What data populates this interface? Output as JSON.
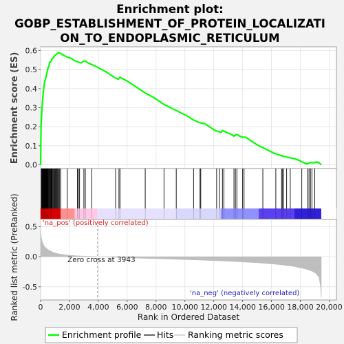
{
  "chart_data": {
    "type": "line",
    "title_lines": [
      "Enrichment plot:",
      "GOBP_ESTABLISHMENT_OF_PROTEIN_LOCALIZATI",
      "ON_TO_ENDOPLASMIC_RETICULUM"
    ],
    "es_panel": {
      "ylabel": "Enrichment score (ES)",
      "ylim": [
        -0.02,
        0.62
      ],
      "yticks": [
        "0.0",
        "0.1",
        "0.2",
        "0.3",
        "0.4",
        "0.5",
        "0.6"
      ],
      "series": [
        {
          "name": "Enrichment profile",
          "color": "#00ff00",
          "x": [
            0,
            30,
            70,
            120,
            170,
            230,
            290,
            340,
            400,
            460,
            520,
            580,
            640,
            700,
            760,
            820,
            880,
            940,
            1000,
            1080,
            1160,
            1250,
            1400,
            1600,
            1850,
            2100,
            2400,
            2600,
            2800,
            3000,
            3100,
            3300,
            3600,
            4000,
            4500,
            5000,
            5200,
            5400,
            5500,
            6000,
            6500,
            7000,
            7300,
            7800,
            8200,
            8600,
            9000,
            9400,
            9800,
            10200,
            10600,
            10900,
            11100,
            11400,
            11800,
            12100,
            12300,
            12500,
            12600,
            12900,
            13200,
            13400,
            13600,
            13800,
            14000,
            14200,
            14600,
            15000,
            15400,
            15800,
            16200,
            16600,
            16800,
            17100,
            17400,
            17700,
            18000,
            18200,
            18400,
            18600,
            18700,
            18900,
            19100,
            19300,
            19450
          ],
          "y": [
            0.0,
            0.2,
            0.26,
            0.32,
            0.37,
            0.41,
            0.44,
            0.45,
            0.47,
            0.49,
            0.51,
            0.52,
            0.54,
            0.54,
            0.55,
            0.56,
            0.56,
            0.57,
            0.575,
            0.58,
            0.585,
            0.59,
            0.585,
            0.575,
            0.565,
            0.56,
            0.545,
            0.54,
            0.535,
            0.545,
            0.545,
            0.535,
            0.525,
            0.51,
            0.49,
            0.465,
            0.455,
            0.45,
            0.46,
            0.44,
            0.415,
            0.39,
            0.375,
            0.355,
            0.335,
            0.315,
            0.3,
            0.285,
            0.27,
            0.255,
            0.235,
            0.225,
            0.22,
            0.215,
            0.195,
            0.18,
            0.175,
            0.17,
            0.18,
            0.17,
            0.16,
            0.15,
            0.16,
            0.15,
            0.145,
            0.145,
            0.125,
            0.105,
            0.09,
            0.075,
            0.06,
            0.05,
            0.045,
            0.04,
            0.035,
            0.03,
            0.02,
            0.012,
            0.005,
            0.008,
            0.012,
            0.01,
            0.015,
            0.01,
            0.0
          ]
        }
      ]
    },
    "hits_panel": {
      "legend_label": "Hits",
      "hit_ranks": [
        60,
        90,
        120,
        150,
        180,
        210,
        240,
        270,
        300,
        330,
        360,
        390,
        420,
        450,
        480,
        520,
        560,
        600,
        640,
        680,
        720,
        760,
        800,
        850,
        900,
        950,
        1000,
        1050,
        1100,
        1150,
        1200,
        1260,
        1320,
        1400,
        1850,
        2550,
        2620,
        2700,
        3000,
        3100,
        3550,
        5200,
        5430,
        5500,
        7250,
        8550,
        9400,
        10600,
        11050,
        11100,
        12200,
        12400,
        12600,
        12700,
        13400,
        13500,
        13600,
        14000,
        14100,
        15400,
        16300,
        16700,
        16750,
        16850,
        17050,
        17300,
        18100,
        18500,
        18600,
        18700,
        18800,
        19000
      ]
    },
    "metric_panel": {
      "ylabel": "Ranked list metric (PreRanked)",
      "ylim": [
        -0.72,
        0.62
      ],
      "yticks": [
        "0.5",
        "0.0",
        "-0.5"
      ],
      "legend_label": "Ranking metric scores",
      "zero_cross_label": "Zero cross at 3943",
      "zero_cross": 3943,
      "pos_label": "'na_pos' (positively correlated)",
      "neg_label": "'na_neg' (negatively correlated)",
      "curve_x": [
        0,
        50,
        100,
        200,
        300,
        500,
        800,
        1200,
        1800,
        2500,
        3200,
        3943,
        5000,
        7000,
        9000,
        11000,
        13000,
        15000,
        16500,
        17500,
        18300,
        18800,
        19100,
        19300,
        19400,
        19450
      ],
      "curve_y": [
        0.45,
        0.32,
        0.26,
        0.2,
        0.16,
        0.12,
        0.08,
        0.05,
        0.03,
        0.015,
        0.008,
        0.0,
        -0.01,
        -0.025,
        -0.04,
        -0.055,
        -0.075,
        -0.1,
        -0.13,
        -0.16,
        -0.2,
        -0.24,
        -0.28,
        -0.35,
        -0.5,
        -0.68
      ]
    },
    "x_axis": {
      "xlabel": "Rank in Ordered Dataset",
      "xlim": [
        0,
        20500
      ],
      "xticks": [
        "0",
        "2,000",
        "4,000",
        "6,000",
        "8,000",
        "10,000",
        "12,000",
        "14,000",
        "16,000",
        "18,000",
        "20,000"
      ],
      "n_genes": 19450
    },
    "legend": {
      "placement": "bottom",
      "entries": [
        "Enrichment profile",
        "Hits",
        "Ranking metric scores"
      ]
    },
    "colors": {
      "profile": "#00ff00",
      "pos_gradient": [
        "#ff0000",
        "#ff9090",
        "#ffc8e6",
        "#e6e0ff"
      ],
      "neg_gradient": [
        "#d8d8ff",
        "#9090ff",
        "#5a40f0",
        "#3020d8"
      ],
      "metric_fill": "#bebebe",
      "grid": "#e2e2e2"
    }
  }
}
